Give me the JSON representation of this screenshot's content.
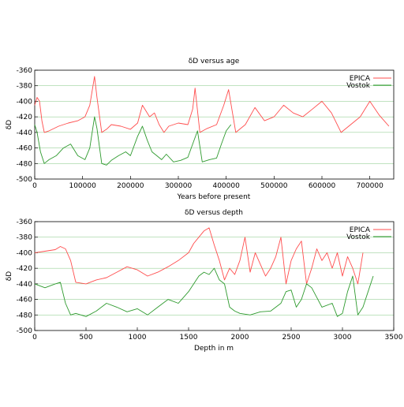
{
  "chart_data": [
    {
      "type": "line",
      "title": "δD versus age",
      "xlabel": "Years before present",
      "ylabel": "δD",
      "xlim": [
        0,
        750000
      ],
      "ylim": [
        -500,
        -360
      ],
      "xticks": [
        "0",
        "100000",
        "200000",
        "300000",
        "400000",
        "500000",
        "600000",
        "700000"
      ],
      "yticks": [
        "-360",
        "-380",
        "-400",
        "-420",
        "-440",
        "-460",
        "-480",
        "-500"
      ],
      "grid": "horizontal",
      "legend_position": "top-right",
      "series": [
        {
          "name": "EPICA",
          "color": "#ff4d4d",
          "x": [
            0,
            5000,
            10000,
            15000,
            20000,
            30000,
            50000,
            70000,
            90000,
            105000,
            115000,
            125000,
            130000,
            140000,
            150000,
            160000,
            180000,
            200000,
            215000,
            225000,
            240000,
            250000,
            260000,
            270000,
            280000,
            300000,
            320000,
            330000,
            335000,
            345000,
            360000,
            380000,
            395000,
            405000,
            420000,
            440000,
            460000,
            480000,
            500000,
            520000,
            540000,
            560000,
            580000,
            600000,
            620000,
            640000,
            660000,
            680000,
            700000,
            720000,
            740000
          ],
          "y": [
            -405,
            -395,
            -400,
            -425,
            -440,
            -438,
            -432,
            -428,
            -425,
            -420,
            -405,
            -368,
            -395,
            -440,
            -436,
            -430,
            -432,
            -436,
            -428,
            -405,
            -420,
            -415,
            -430,
            -440,
            -432,
            -428,
            -430,
            -410,
            -383,
            -440,
            -435,
            -430,
            -405,
            -385,
            -440,
            -430,
            -408,
            -425,
            -420,
            -405,
            -415,
            -420,
            -410,
            -400,
            -415,
            -440,
            -430,
            -420,
            -400,
            -418,
            -432
          ]
        },
        {
          "name": "Vostok",
          "color": "#2e9a2e",
          "x": [
            0,
            5000,
            12000,
            20000,
            30000,
            45000,
            60000,
            75000,
            90000,
            105000,
            115000,
            125000,
            130000,
            140000,
            150000,
            160000,
            175000,
            190000,
            200000,
            215000,
            225000,
            235000,
            245000,
            255000,
            265000,
            275000,
            290000,
            305000,
            320000,
            330000,
            340000,
            350000,
            365000,
            380000,
            390000,
            400000,
            410000
          ],
          "y": [
            -430,
            -440,
            -465,
            -480,
            -475,
            -470,
            -460,
            -455,
            -470,
            -475,
            -460,
            -420,
            -435,
            -480,
            -482,
            -476,
            -470,
            -465,
            -470,
            -445,
            -432,
            -450,
            -465,
            -470,
            -475,
            -468,
            -478,
            -476,
            -472,
            -455,
            -438,
            -478,
            -475,
            -473,
            -455,
            -438,
            -430
          ]
        }
      ]
    },
    {
      "type": "line",
      "title": "δD versus depth",
      "xlabel": "Depth in m",
      "ylabel": "δD",
      "xlim": [
        0,
        3500
      ],
      "ylim": [
        -500,
        -360
      ],
      "xticks": [
        "0",
        "500",
        "1000",
        "1500",
        "2000",
        "2500",
        "3000",
        "3500"
      ],
      "yticks": [
        "-360",
        "-380",
        "-400",
        "-420",
        "-440",
        "-460",
        "-480",
        "-500"
      ],
      "grid": "horizontal",
      "legend_position": "top-right",
      "series": [
        {
          "name": "EPICA",
          "color": "#ff4d4d",
          "x": [
            0,
            100,
            200,
            250,
            300,
            350,
            400,
            500,
            600,
            700,
            800,
            900,
            1000,
            1100,
            1200,
            1300,
            1400,
            1500,
            1550,
            1600,
            1650,
            1700,
            1750,
            1800,
            1850,
            1900,
            1950,
            2000,
            2050,
            2100,
            2150,
            2200,
            2250,
            2300,
            2350,
            2400,
            2450,
            2500,
            2550,
            2600,
            2650,
            2700,
            2750,
            2800,
            2850,
            2900,
            2950,
            3000,
            3050,
            3100,
            3150,
            3200
          ],
          "y": [
            -400,
            -398,
            -396,
            -392,
            -395,
            -410,
            -438,
            -440,
            -435,
            -432,
            -425,
            -418,
            -422,
            -430,
            -425,
            -418,
            -410,
            -400,
            -388,
            -380,
            -372,
            -368,
            -390,
            -410,
            -435,
            -420,
            -428,
            -410,
            -380,
            -425,
            -400,
            -415,
            -430,
            -420,
            -405,
            -380,
            -440,
            -410,
            -395,
            -385,
            -440,
            -420,
            -395,
            -410,
            -400,
            -420,
            -400,
            -430,
            -405,
            -420,
            -440,
            -400
          ]
        },
        {
          "name": "Vostok",
          "color": "#2e9a2e",
          "x": [
            0,
            100,
            200,
            250,
            300,
            350,
            400,
            500,
            600,
            700,
            800,
            900,
            1000,
            1100,
            1200,
            1300,
            1400,
            1500,
            1550,
            1600,
            1650,
            1700,
            1750,
            1800,
            1850,
            1900,
            1950,
            2000,
            2100,
            2200,
            2300,
            2400,
            2450,
            2500,
            2550,
            2600,
            2650,
            2700,
            2800,
            2900,
            2950,
            3000,
            3050,
            3100,
            3150,
            3200,
            3250,
            3300
          ],
          "y": [
            -440,
            -445,
            -440,
            -438,
            -465,
            -480,
            -478,
            -482,
            -475,
            -465,
            -470,
            -476,
            -472,
            -480,
            -470,
            -460,
            -465,
            -450,
            -440,
            -430,
            -425,
            -428,
            -420,
            -435,
            -440,
            -470,
            -475,
            -478,
            -480,
            -476,
            -475,
            -465,
            -450,
            -448,
            -470,
            -460,
            -440,
            -445,
            -470,
            -465,
            -482,
            -478,
            -450,
            -430,
            -480,
            -470,
            -450,
            -430
          ]
        }
      ]
    }
  ]
}
